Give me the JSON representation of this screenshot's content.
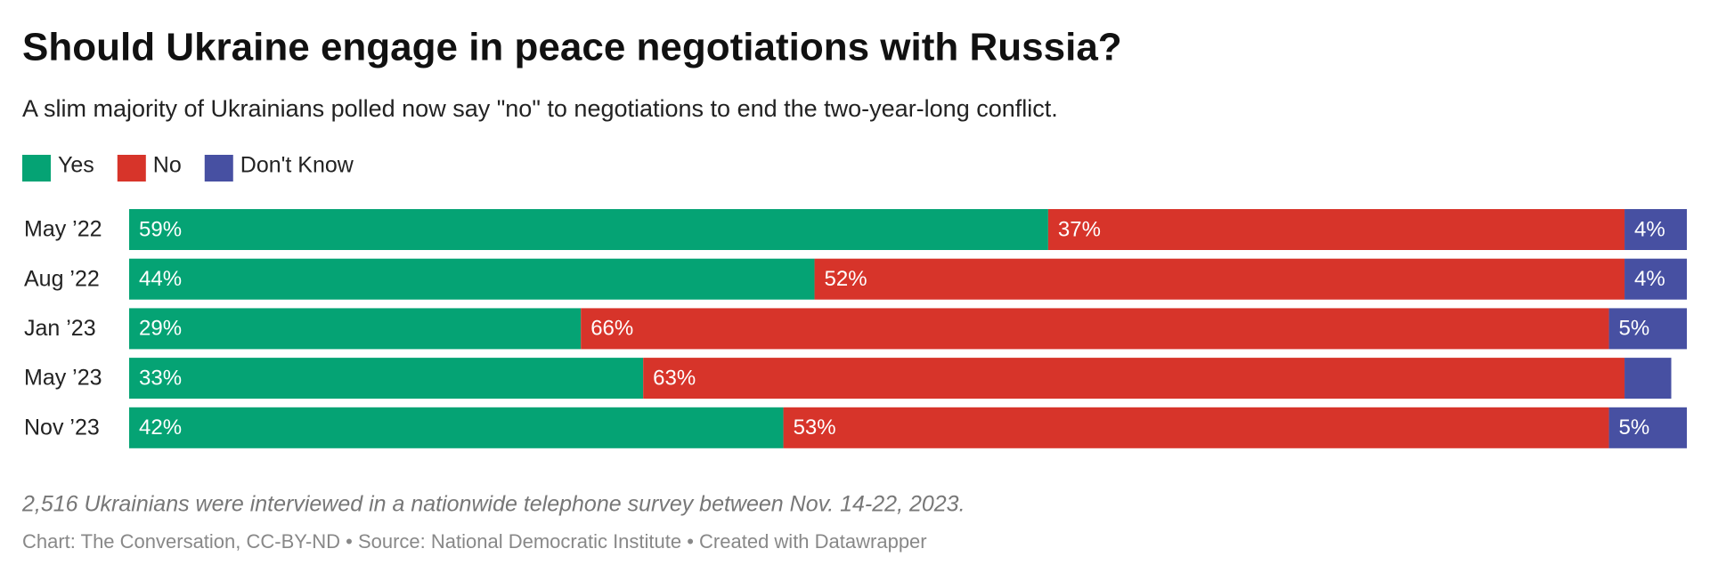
{
  "chart_data": {
    "type": "stacked-bar-horizontal",
    "title": "Should Ukraine engage in peace negotiations with Russia?",
    "subtitle": "A slim majority of Ukrainians polled now say \"no\" to negotiations to end the two-year-long conflict.",
    "categories": [
      "May ’22",
      "Aug ’22",
      "Jan ’23",
      "May ’23",
      "Nov ’23"
    ],
    "xlim": [
      0,
      100
    ],
    "series": [
      {
        "name": "Yes",
        "color": "#05a374",
        "values": [
          59,
          44,
          29,
          33,
          42
        ],
        "value_labels": [
          "59%",
          "44%",
          "29%",
          "33%",
          "42%"
        ]
      },
      {
        "name": "No",
        "color": "#d7342a",
        "values": [
          37,
          52,
          66,
          63,
          53
        ],
        "value_labels": [
          "37%",
          "52%",
          "66%",
          "63%",
          "53%"
        ]
      },
      {
        "name": "Don't Know",
        "color": "#4750a2",
        "values": [
          4,
          4,
          5,
          3,
          5
        ],
        "value_labels": [
          "4%",
          "4%",
          "5%",
          null,
          "5%"
        ]
      }
    ],
    "note": "2,516 Ukrainians were interviewed in a nationwide telephone survey between Nov. 14-22, 2023.",
    "source": "Chart: The Conversation, CC-BY-ND • Source: National Democratic Institute • Created with Datawrapper"
  }
}
